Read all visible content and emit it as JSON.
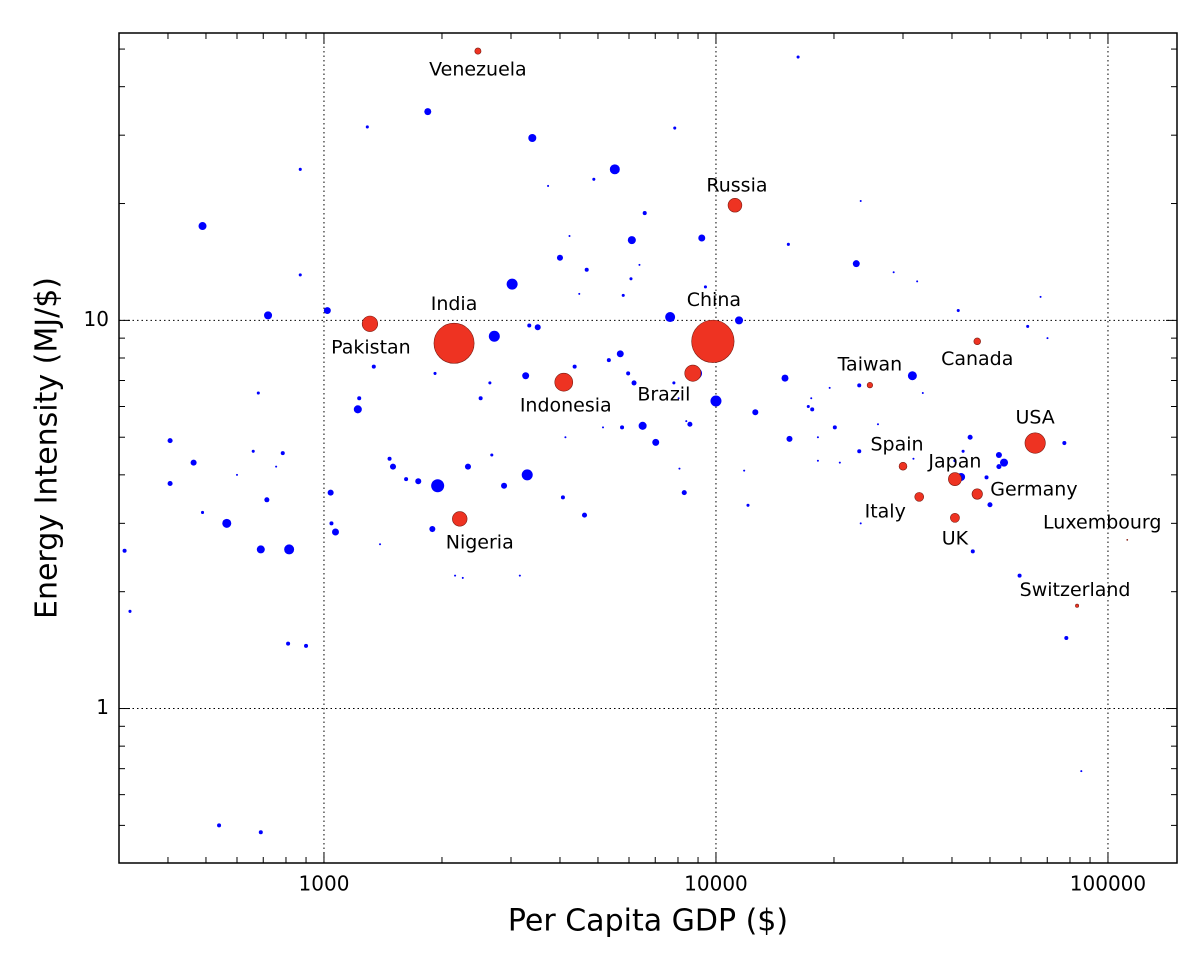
{
  "chart_data": {
    "type": "scatter",
    "x_label": "Per Capita GDP ($)",
    "y_label": "Energy Intensity (MJ/$)",
    "x_log": true,
    "y_log": true,
    "grid": true,
    "xlim": [
      300,
      150000
    ],
    "ylim": [
      0.4,
      55
    ],
    "xticks": [
      1000,
      10000,
      100000
    ],
    "yticks": [
      1,
      10
    ],
    "series": [
      {
        "color": "#0000ff",
        "x": [
          310,
          320,
          405,
          405,
          465,
          490,
          490,
          565,
          540,
          600,
          660,
          680,
          690,
          690,
          720,
          715,
          755,
          785,
          815,
          810,
          870,
          870,
          900,
          1020,
          1040,
          1045,
          1070,
          1220,
          1230,
          1290,
          1340,
          1390,
          1470,
          1500,
          1620,
          1740,
          1840,
          1890,
          1920,
          1950,
          2160,
          2260,
          2330,
          2510,
          2650,
          2720,
          2680,
          2880,
          3020,
          3160,
          3270,
          3300,
          3340,
          3400,
          3510,
          3730,
          4000,
          4070,
          4130,
          4230,
          4360,
          4480,
          4620,
          4680,
          4880,
          5150,
          5330,
          5520,
          5700,
          5760,
          5800,
          5970,
          6070,
          6100,
          6180,
          6380,
          6500,
          6580,
          7020,
          7640,
          7810,
          7850,
          8030,
          8070,
          8300,
          8400,
          8580,
          8920,
          9200,
          9400,
          10000,
          11450,
          11800,
          12070,
          12600,
          15000,
          15300,
          15400,
          16200,
          17200,
          17500,
          17600,
          18200,
          18200,
          19500,
          20100,
          20700,
          22800,
          23200,
          23200,
          23400,
          23400,
          25900,
          28400,
          31700,
          31900,
          32600,
          33700,
          40700,
          41500,
          42200,
          42700,
          44500,
          45200,
          49000,
          50000,
          52700,
          52700,
          54300,
          59500,
          62400,
          67300,
          70100,
          77400,
          78300,
          85500
        ],
        "values": [
          2.55,
          1.78,
          4.9,
          3.8,
          4.3,
          17.5,
          3.2,
          3.0,
          0.5,
          4.0,
          4.6,
          6.5,
          2.57,
          0.48,
          10.3,
          3.45,
          4.2,
          4.55,
          2.57,
          1.47,
          24.5,
          13.1,
          1.45,
          10.6,
          3.6,
          3.0,
          2.85,
          5.9,
          6.3,
          31.5,
          7.6,
          2.65,
          4.4,
          4.2,
          3.9,
          3.85,
          34.5,
          2.9,
          7.3,
          3.75,
          2.2,
          2.17,
          4.2,
          6.3,
          6.9,
          9.1,
          4.5,
          3.75,
          12.4,
          2.2,
          7.2,
          4.0,
          9.7,
          29.5,
          9.6,
          22.2,
          14.5,
          3.5,
          5.0,
          16.5,
          7.6,
          11.7,
          3.15,
          13.5,
          23.1,
          5.3,
          7.9,
          24.5,
          8.2,
          5.3,
          11.6,
          7.3,
          12.8,
          16.1,
          6.9,
          13.9,
          5.35,
          18.9,
          4.85,
          10.2,
          6.9,
          31.3,
          6.3,
          4.15,
          3.6,
          5.5,
          5.4,
          7.3,
          16.3,
          12.2,
          6.2,
          10.0,
          4.1,
          3.34,
          5.8,
          7.1,
          15.7,
          4.95,
          47.7,
          6.0,
          6.3,
          5.9,
          5.0,
          4.35,
          6.7,
          5.3,
          4.3,
          14.0,
          4.6,
          6.8,
          20.3,
          3.0,
          5.4,
          13.3,
          7.2,
          4.4,
          12.6,
          6.5,
          4.35,
          10.6,
          3.95,
          4.6,
          5.0,
          2.54,
          3.94,
          3.35,
          4.5,
          4.2,
          4.3,
          2.2,
          9.65,
          11.5,
          9.0,
          4.83,
          1.52,
          0.69
        ],
        "sizes": [
          12,
          7,
          19,
          19,
          27,
          48,
          7,
          60,
          12,
          3,
          7,
          7,
          48,
          12,
          48,
          19,
          3,
          12,
          74,
          12,
          7,
          7,
          12,
          36,
          27,
          12,
          36,
          48,
          12,
          7,
          12,
          3,
          12,
          27,
          12,
          27,
          36,
          27,
          7,
          126,
          3,
          3,
          27,
          12,
          7,
          90,
          7,
          27,
          90,
          3,
          36,
          90,
          12,
          48,
          27,
          3,
          27,
          12,
          3,
          3,
          12,
          3,
          19,
          12,
          7,
          3,
          12,
          74,
          36,
          12,
          7,
          12,
          7,
          48,
          19,
          3,
          48,
          12,
          36,
          74,
          7,
          7,
          3,
          3,
          19,
          3,
          19,
          90,
          36,
          7,
          90,
          48,
          3,
          7,
          27,
          36,
          7,
          27,
          7,
          7,
          3,
          12,
          3,
          3,
          3,
          12,
          3,
          36,
          12,
          12,
          3,
          3,
          3,
          3,
          60,
          3,
          3,
          3,
          7,
          7,
          48,
          7,
          19,
          12,
          12,
          19,
          27,
          19,
          48,
          12,
          7,
          3,
          3,
          12,
          12,
          3
        ]
      },
      {
        "color": "#ee3322",
        "labels": [
          "Venezuela",
          "Russia",
          "India",
          "Pakistan",
          "China",
          "Indonesia",
          "Brazil",
          "Nigeria",
          "Taiwan",
          "Canada",
          "USA",
          "Spain",
          "Japan",
          "Germany",
          "Italy",
          "UK",
          "Luxembourg",
          "Switzerland"
        ],
        "x": [
          2470,
          11180,
          2147,
          1310,
          9820,
          4090,
          8730,
          2220,
          24700,
          46400,
          65200,
          30000,
          40700,
          46400,
          33000,
          40700,
          112000,
          83400
        ],
        "values": [
          49.4,
          19.8,
          8.73,
          9.8,
          8.83,
          6.93,
          7.31,
          3.08,
          6.81,
          8.83,
          4.83,
          4.21,
          3.9,
          3.57,
          3.51,
          3.1,
          2.72,
          1.84
        ],
        "sizes": [
          29,
          142,
          1200,
          180,
          1340,
          240,
          195,
          160,
          23,
          34,
          310,
          46,
          127,
          82,
          60,
          62,
          1,
          8
        ]
      }
    ]
  }
}
